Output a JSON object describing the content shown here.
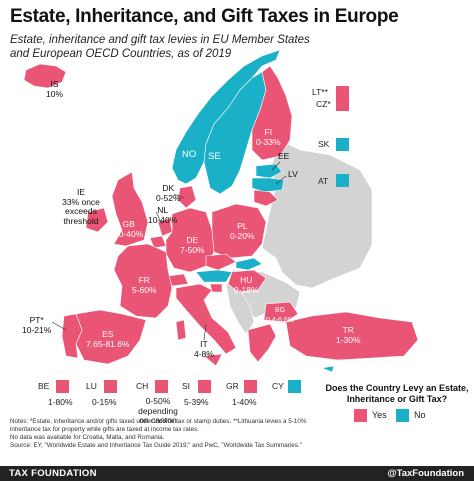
{
  "title": "Estate, Inheritance, and Gift Taxes in Europe",
  "subtitle": "Estate, inheritance and gift tax levies in EU Member States and European OECD Countries, as of 2019",
  "colors": {
    "yes": "#ea5475",
    "no": "#1ab0c8",
    "no_data": "#d3d3d3",
    "footer": "#222222"
  },
  "countries": [
    {
      "code": "IS",
      "rate": "10%",
      "levy": "yes"
    },
    {
      "code": "NO",
      "rate": "",
      "levy": "no"
    },
    {
      "code": "SE",
      "rate": "",
      "levy": "no"
    },
    {
      "code": "FI",
      "rate": "0-33%",
      "levy": "yes"
    },
    {
      "code": "EE",
      "rate": "",
      "levy": "no"
    },
    {
      "code": "LV",
      "rate": "",
      "levy": "no"
    },
    {
      "code": "DK",
      "rate": "0-52%",
      "levy": "yes"
    },
    {
      "code": "IE",
      "rate": "33% once exceeds threshold",
      "levy": "yes"
    },
    {
      "code": "GB",
      "rate": "20-40%",
      "levy": "yes"
    },
    {
      "code": "NL",
      "rate": "10-40%",
      "levy": "yes"
    },
    {
      "code": "DE",
      "rate": "7-50%",
      "levy": "yes"
    },
    {
      "code": "PL",
      "rate": "0-20%",
      "levy": "yes"
    },
    {
      "code": "FR",
      "rate": "5-60%",
      "levy": "yes"
    },
    {
      "code": "HU",
      "rate": "9-18%",
      "levy": "yes"
    },
    {
      "code": "BG",
      "rate": "0.4-6.6%",
      "levy": "yes"
    },
    {
      "code": "PT*",
      "rate": "10-21%",
      "levy": "yes"
    },
    {
      "code": "ES",
      "rate": "7.65-81.6%",
      "levy": "yes"
    },
    {
      "code": "IT",
      "rate": "4-8%",
      "levy": "yes"
    },
    {
      "code": "TR",
      "rate": "1-30%",
      "levy": "yes"
    }
  ],
  "side_boxes": [
    {
      "code": "LT**",
      "levy": "yes"
    },
    {
      "code": "CZ*",
      "levy": "yes"
    },
    {
      "code": "SK",
      "levy": "no"
    },
    {
      "code": "AT",
      "levy": "no"
    }
  ],
  "small_states": [
    {
      "code": "BE",
      "rate": "1-80%",
      "levy": "yes"
    },
    {
      "code": "LU",
      "rate": "0-15%",
      "levy": "yes"
    },
    {
      "code": "CH",
      "rate": "0-50% depending on canton",
      "levy": "yes"
    },
    {
      "code": "SI",
      "rate": "5-39%",
      "levy": "yes"
    },
    {
      "code": "GR",
      "rate": "1-40%",
      "levy": "yes"
    },
    {
      "code": "CY",
      "rate": "",
      "levy": "no"
    }
  ],
  "legend": {
    "question": "Does the Country Levy an Estate, Inheritance or Gift Tax?",
    "yes": "Yes",
    "no": "No"
  },
  "notes": [
    "Notes: *Estate, inheritance and/or gifts taxed under income tax or stamp duties. **Lithuania levies a 5-10% inheritance tax for property while gifts are taxed at income tax rates.",
    "No data was available for Croatia, Malta, and Romania.",
    "Source: EY, \"Worldwide Estate and Inheritance Tax Guide 2019;\" and PwC, \"Worldwide Tax Summaries.\""
  ],
  "footer": {
    "brand": "TAX FOUNDATION",
    "handle": "@TaxFoundation"
  }
}
